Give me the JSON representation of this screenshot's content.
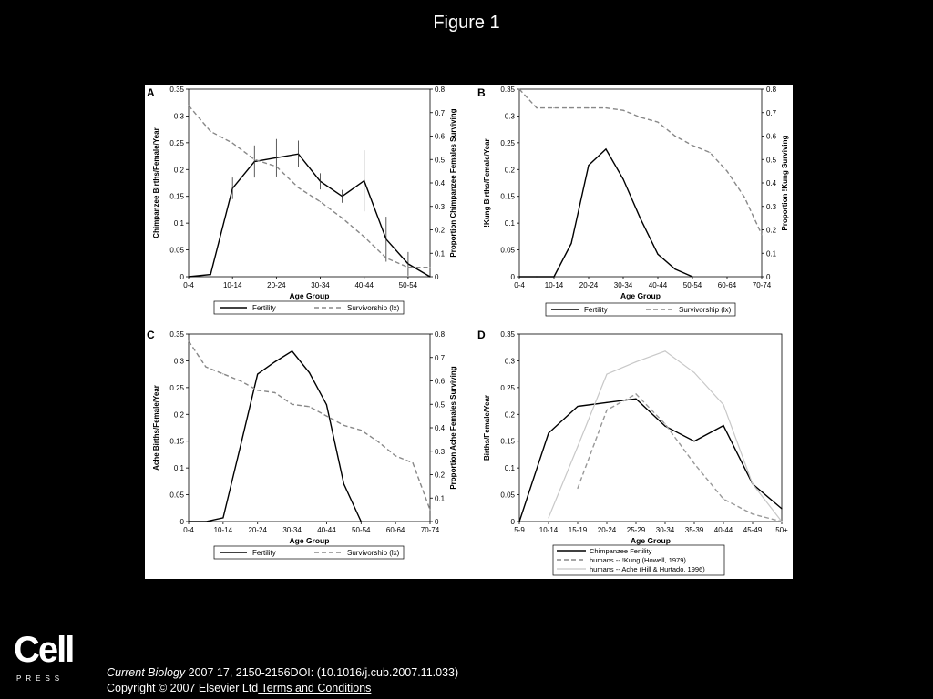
{
  "page": {
    "title": "Figure 1",
    "citation": {
      "journal": "Current Biology",
      "ref": " 2007 17, 2150-2156DOI: (10.1016/j.cub.2007.11.033)",
      "copyright": "Copyright © 2007 Elsevier Ltd",
      "terms_link": " Terms and Conditions"
    },
    "logo": {
      "word": "Cell",
      "press": "PRESS"
    }
  },
  "chart_data": [
    {
      "panel": "A",
      "type": "line",
      "ylabel": "Chimpanzee Births/Female/Year",
      "y2label": "Proportion Chimpanzee Females Surviving",
      "xlabel": "Age Group",
      "x_ticks": [
        "0-4",
        "10-14",
        "20-24",
        "30-34",
        "40-44",
        "50-54"
      ],
      "ylim": [
        0,
        0.35
      ],
      "y_ticks": [
        0,
        0.05,
        0.1,
        0.15,
        0.2,
        0.25,
        0.3,
        0.35
      ],
      "y2lim": [
        0,
        0.8
      ],
      "y2_ticks": [
        0,
        0.1,
        0.2,
        0.3,
        0.4,
        0.5,
        0.6,
        0.7,
        0.8
      ],
      "legend": [
        "Fertility",
        "Survivorship (lx)"
      ],
      "series": [
        {
          "name": "Fertility",
          "axis": "left",
          "style": "solid",
          "x": [
            0,
            1,
            2,
            3,
            4,
            5,
            6,
            7,
            8,
            9,
            10,
            11
          ],
          "values": [
            0,
            0.004,
            0.165,
            0.215,
            0.222,
            0.229,
            0.178,
            0.15,
            0.179,
            0.07,
            0.024,
            0
          ],
          "errors": [
            null,
            null,
            0.02,
            0.03,
            0.035,
            0.025,
            0.015,
            0.012,
            0.057,
            0.042,
            0.022,
            null
          ]
        },
        {
          "name": "Survivorship (lx)",
          "axis": "right",
          "style": "dashed",
          "x": [
            0,
            1,
            2,
            3,
            4,
            5,
            6,
            7,
            8,
            9,
            10,
            11
          ],
          "values": [
            0.73,
            0.62,
            0.57,
            0.5,
            0.47,
            0.38,
            0.32,
            0.25,
            0.17,
            0.08,
            0.04,
            0.04
          ]
        }
      ]
    },
    {
      "panel": "B",
      "type": "line",
      "ylabel": "!Kung Births/Female/Year",
      "y2label": "Proportion !Kung Surviving",
      "xlabel": "Age Group",
      "x_ticks": [
        "0-4",
        "10-14",
        "20-24",
        "30-34",
        "40-44",
        "50-54",
        "60-64",
        "70-74"
      ],
      "ylim": [
        0,
        0.35
      ],
      "y_ticks": [
        0,
        0.05,
        0.1,
        0.15,
        0.2,
        0.25,
        0.3,
        0.35
      ],
      "y2lim": [
        0,
        0.8
      ],
      "y2_ticks": [
        0,
        0.1,
        0.2,
        0.3,
        0.4,
        0.5,
        0.6,
        0.7,
        0.8
      ],
      "legend": [
        "Fertility",
        "Survivorship (lx)"
      ],
      "series": [
        {
          "name": "Fertility",
          "axis": "left",
          "style": "solid",
          "x": [
            0,
            1,
            2,
            3,
            4,
            5,
            6,
            7,
            8,
            9,
            10
          ],
          "values": [
            0,
            0,
            0,
            0.062,
            0.208,
            0.238,
            0.182,
            0.108,
            0.042,
            0.014,
            0
          ]
        },
        {
          "name": "Survivorship (lx)",
          "axis": "right",
          "style": "dashed",
          "x": [
            0,
            1,
            2,
            3,
            4,
            5,
            6,
            7,
            8,
            9,
            10,
            11,
            12,
            13,
            14
          ],
          "values": [
            0.8,
            0.72,
            0.72,
            0.72,
            0.72,
            0.72,
            0.71,
            0.68,
            0.66,
            0.6,
            0.56,
            0.53,
            0.45,
            0.34,
            0.18
          ]
        }
      ]
    },
    {
      "panel": "C",
      "type": "line",
      "ylabel": "Ache Births/Female/Year",
      "y2label": "Proportion Ache Females Surviving",
      "xlabel": "Age Group",
      "x_ticks": [
        "0-4",
        "10-14",
        "20-24",
        "30-34",
        "40-44",
        "50-54",
        "60-64",
        "70-74"
      ],
      "ylim": [
        0,
        0.35
      ],
      "y_ticks": [
        0,
        0.05,
        0.1,
        0.15,
        0.2,
        0.25,
        0.3,
        0.35
      ],
      "y2lim": [
        0,
        0.8
      ],
      "y2_ticks": [
        0,
        0.1,
        0.2,
        0.3,
        0.4,
        0.5,
        0.6,
        0.7,
        0.8
      ],
      "legend": [
        "Fertility",
        "Survivorship (lx)"
      ],
      "series": [
        {
          "name": "Fertility",
          "axis": "left",
          "style": "solid",
          "x": [
            0,
            1,
            2,
            3,
            4,
            5,
            6,
            7,
            8,
            9,
            10
          ],
          "values": [
            0,
            0,
            0.007,
            0.14,
            0.275,
            0.298,
            0.318,
            0.278,
            0.218,
            0.07,
            0
          ]
        },
        {
          "name": "Survivorship (lx)",
          "axis": "right",
          "style": "dashed",
          "x": [
            0,
            1,
            2,
            3,
            4,
            5,
            6,
            7,
            8,
            9,
            10,
            11,
            12,
            13,
            14
          ],
          "values": [
            0.77,
            0.66,
            0.63,
            0.6,
            0.56,
            0.55,
            0.5,
            0.49,
            0.45,
            0.41,
            0.39,
            0.34,
            0.28,
            0.25,
            0.05
          ]
        }
      ]
    },
    {
      "panel": "D",
      "type": "line",
      "ylabel": "Births/Female/Year",
      "xlabel": "Age Group",
      "categories": [
        "5-9",
        "10-14",
        "15-19",
        "20-24",
        "25-29",
        "30-34",
        "35-39",
        "40-44",
        "45-49",
        "50+"
      ],
      "ylim": [
        0,
        0.35
      ],
      "y_ticks": [
        0,
        0.05,
        0.1,
        0.15,
        0.2,
        0.25,
        0.3,
        0.35
      ],
      "legend": [
        "Chimpanzee Fertility",
        "humans -- !Kung (Howell, 1979)",
        "humans -- Ache (Hill & Hurtado, 1996)"
      ],
      "series": [
        {
          "name": "Chimpanzee Fertility",
          "style": "solid",
          "x": [
            0,
            1,
            2,
            3,
            4,
            5,
            6,
            7,
            8,
            9
          ],
          "values": [
            0,
            0.165,
            0.215,
            0.222,
            0.229,
            0.178,
            0.15,
            0.179,
            0.07,
            0.024
          ]
        },
        {
          "name": "humans -- !Kung (Howell, 1979)",
          "style": "dashed",
          "x": [
            2,
            3,
            4,
            5,
            6,
            7,
            8,
            9
          ],
          "values": [
            0.062,
            0.208,
            0.238,
            0.182,
            0.108,
            0.042,
            0.014,
            0
          ]
        },
        {
          "name": "humans -- Ache (Hill & Hurtado, 1996)",
          "style": "light",
          "x": [
            1,
            2,
            3,
            4,
            5,
            6,
            7,
            8,
            9
          ],
          "values": [
            0.007,
            0.14,
            0.275,
            0.298,
            0.318,
            0.278,
            0.218,
            0.07,
            0
          ]
        }
      ]
    }
  ]
}
